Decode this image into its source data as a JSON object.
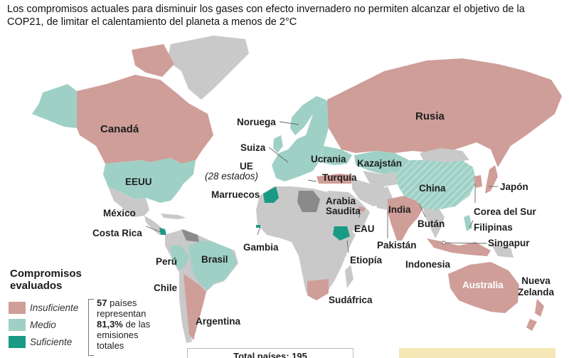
{
  "title": "Los compromisos actuales para disminuir los gases con efecto invernadero no permiten alcanzar el objetivo de la COP21, de limitar el calentamiento del planeta a menos de 2°C",
  "colors": {
    "insuficiente": "#cf9e99",
    "medio": "#9fd0c6",
    "suficiente": "#1a9a84",
    "no_evaluado": "#c9c9c9",
    "oscuro": "#8a8a8a",
    "ocean": "#ffffff"
  },
  "countries": {
    "canada": "Canadá",
    "eeuu": "EEUU",
    "mexico": "México",
    "costa_rica": "Costa Rica",
    "peru": "Perú",
    "brasil": "Brasil",
    "chile": "Chile",
    "argentina": "Argentina",
    "noruega": "Noruega",
    "suiza": "Suiza",
    "ue": "UE",
    "ue_note": "(28 estados)",
    "marruecos": "Marruecos",
    "gambia": "Gambia",
    "ucrania": "Ucrania",
    "turquia": "Turquía",
    "kazajstan": "Kazajstán",
    "arabia_saudita": "Arabia\nSaudita",
    "eau": "EAU",
    "etiopia": "Etiopía",
    "sudafrica": "Sudáfrica",
    "rusia": "Rusia",
    "china": "China",
    "india": "India",
    "pakistan": "Pakistán",
    "butan": "Bután",
    "japon": "Japón",
    "corea_del_sur": "Corea del Sur",
    "filipinas": "Filipinas",
    "singapur": "Singapur",
    "indonesia": "Indonesia",
    "australia": "Australia",
    "nueva_zelanda": "Nueva\nZelanda"
  },
  "legend": {
    "title": "Compromisos evaluados",
    "items": [
      {
        "label": "Insuficiente",
        "color": "#cf9e99"
      },
      {
        "label": "Medio",
        "color": "#9fd0c6"
      },
      {
        "label": "Suficiente",
        "color": "#1a9a84"
      }
    ],
    "stat_count": "57",
    "stat_text1": "países",
    "stat_text2": "representan",
    "stat_pct": "81,3%",
    "stat_text3": "de las",
    "stat_text4": "emisiones",
    "stat_text5": "totales"
  },
  "total_box": "Total países: 195"
}
